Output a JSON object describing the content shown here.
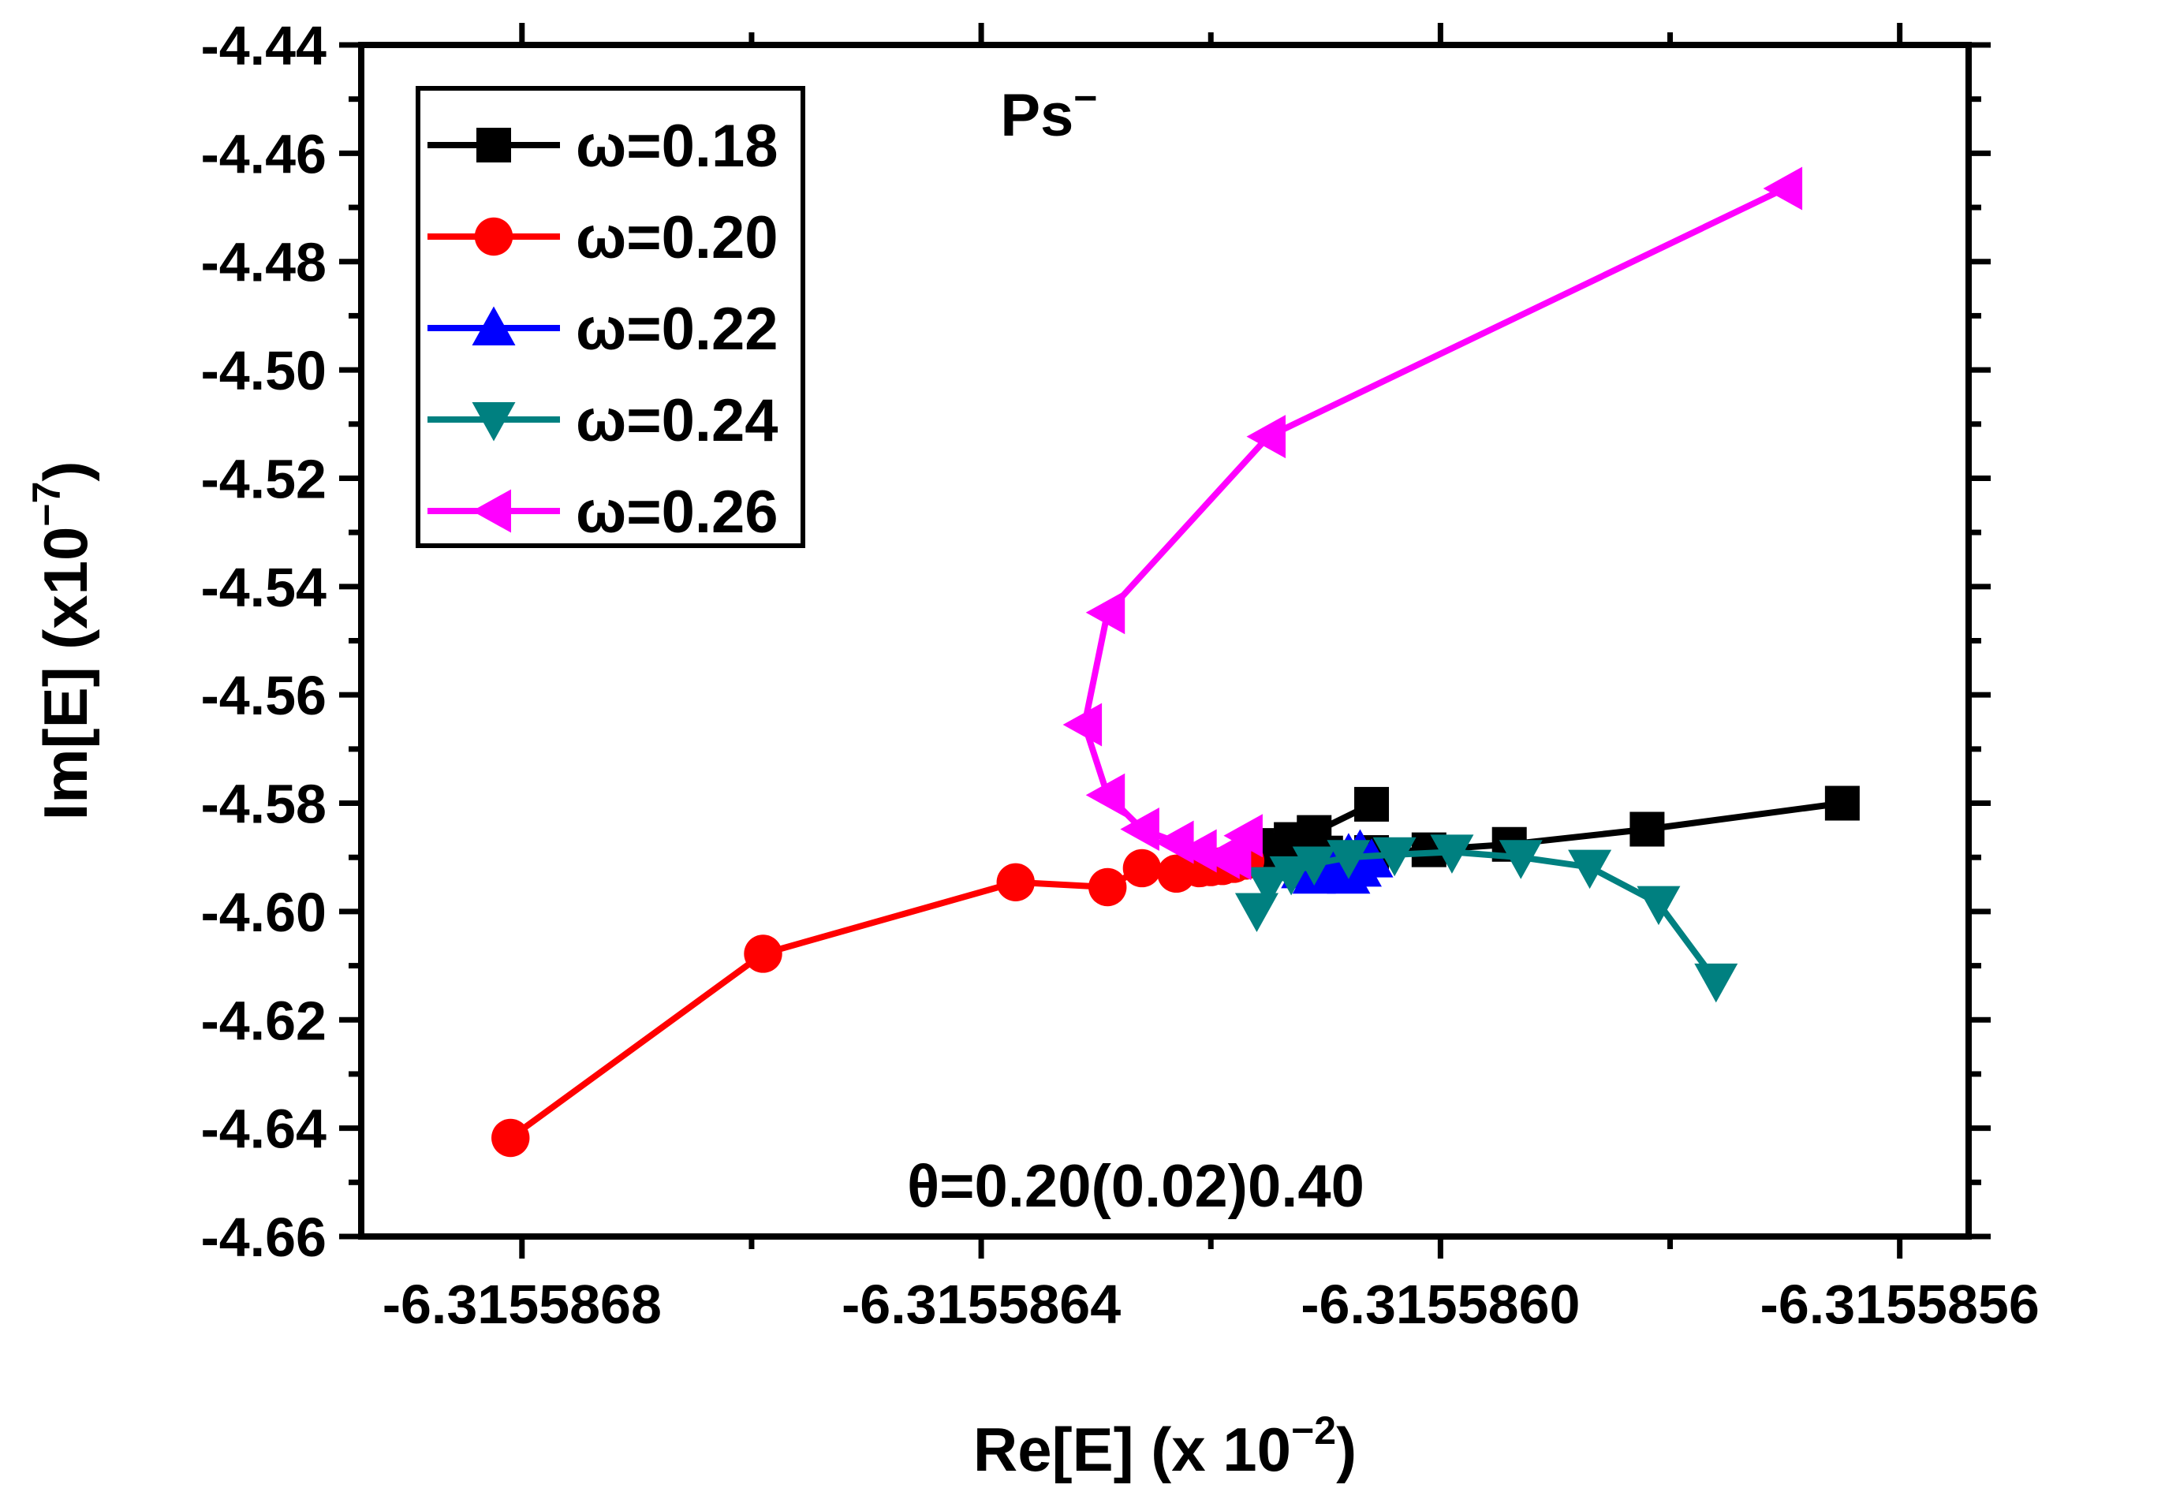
{
  "chart_data": {
    "type": "line",
    "title": "",
    "xlabel": "Re[E] (x 10",
    "xlabel_exponent": "−2",
    "xlabel_suffix": ")",
    "ylabel": "Im[E] (x10",
    "ylabel_exponent": "−7",
    "ylabel_suffix": ")",
    "xlim": [
      -6.31558694,
      -6.31558554
    ],
    "ylim": [
      -4.66,
      -4.44
    ],
    "x_ticks": [
      -6.3155868,
      -6.3155864,
      -6.315586,
      -6.3155856
    ],
    "x_tick_labels": [
      "-6.3155868",
      "-6.3155864",
      "-6.3155860",
      "-6.3155856"
    ],
    "y_ticks": [
      -4.44,
      -4.46,
      -4.48,
      -4.5,
      -4.52,
      -4.54,
      -4.56,
      -4.58,
      -4.6,
      -4.62,
      -4.64,
      -4.66
    ],
    "y_tick_labels": [
      "-4.44",
      "-4.46",
      "-4.48",
      "-4.50",
      "-4.52",
      "-4.54",
      "-4.56",
      "-4.58",
      "-4.60",
      "-4.62",
      "-4.64",
      "-4.66"
    ],
    "annotations": [
      {
        "text": "Ps",
        "superscript": "−",
        "placement": "top-center"
      },
      {
        "text": "θ=0.20(0.02)0.40",
        "placement": "bottom-center"
      }
    ],
    "legend": {
      "placement": "top-left"
    },
    "series": [
      {
        "name": "ω=0.18",
        "color": "#000000",
        "marker": "square",
        "points": [
          [
            -6.31558565,
            -4.58
          ],
          [
            -6.31558582,
            -4.5848
          ],
          [
            -6.31558594,
            -4.5876
          ],
          [
            -6.31558601,
            -4.5886
          ],
          [
            -6.31558606,
            -4.5891
          ],
          [
            -6.3155861,
            -4.5892
          ],
          [
            -6.31558614,
            -4.5886
          ],
          [
            -6.31558616,
            -4.5878
          ],
          [
            -6.31558613,
            -4.5867
          ],
          [
            -6.31558611,
            -4.5854
          ],
          [
            -6.31558606,
            -4.5802
          ]
        ]
      },
      {
        "name": "ω=0.20",
        "color": "#ff0000",
        "marker": "circle",
        "points": [
          [
            -6.31558681,
            -4.6418
          ],
          [
            -6.31558659,
            -4.6078
          ],
          [
            -6.31558637,
            -4.5946
          ],
          [
            -6.31558629,
            -4.5955
          ],
          [
            -6.31558626,
            -4.592
          ],
          [
            -6.31558623,
            -4.593
          ],
          [
            -6.31558621,
            -4.592
          ],
          [
            -6.3155862,
            -4.5918
          ],
          [
            -6.31558619,
            -4.5916
          ],
          [
            -6.31558618,
            -4.5912
          ],
          [
            -6.31558617,
            -4.5906
          ]
        ]
      },
      {
        "name": "ω=0.22",
        "color": "#0000ff",
        "marker": "triangle-up",
        "points": [
          [
            -6.31558612,
            -4.5925
          ],
          [
            -6.31558611,
            -4.5935
          ],
          [
            -6.3155861,
            -4.5928
          ],
          [
            -6.31558609,
            -4.591
          ],
          [
            -6.31558608,
            -4.5895
          ],
          [
            -6.31558607,
            -4.5888
          ],
          [
            -6.31558606,
            -4.5905
          ],
          [
            -6.31558607,
            -4.5922
          ],
          [
            -6.31558608,
            -4.5935
          ],
          [
            -6.31558609,
            -4.593
          ],
          [
            -6.31558609,
            -4.5918
          ]
        ]
      },
      {
        "name": "ω=0.24",
        "color": "#008080",
        "marker": "triangle-down",
        "points": [
          [
            -6.31558616,
            -4.5998
          ],
          [
            -6.31558615,
            -4.595
          ],
          [
            -6.31558613,
            -4.593
          ],
          [
            -6.31558611,
            -4.5912
          ],
          [
            -6.31558608,
            -4.59
          ],
          [
            -6.31558604,
            -4.5895
          ],
          [
            -6.31558599,
            -4.589
          ],
          [
            -6.31558593,
            -4.59
          ],
          [
            -6.31558587,
            -4.5918
          ],
          [
            -6.31558581,
            -4.5985
          ],
          [
            -6.31558576,
            -4.6128
          ]
        ]
      },
      {
        "name": "ω=0.26",
        "color": "#ff00ff",
        "marker": "triangle-left",
        "points": [
          [
            -6.3155857,
            -4.4665
          ],
          [
            -6.31558615,
            -4.5123
          ],
          [
            -6.31558629,
            -4.5448
          ],
          [
            -6.31558631,
            -4.5655
          ],
          [
            -6.31558629,
            -4.5785
          ],
          [
            -6.31558626,
            -4.5848
          ],
          [
            -6.31558623,
            -4.5872
          ],
          [
            -6.31558621,
            -4.5888
          ],
          [
            -6.31558619,
            -4.59
          ],
          [
            -6.31558618,
            -4.5902
          ],
          [
            -6.31558617,
            -4.586
          ]
        ]
      }
    ]
  }
}
